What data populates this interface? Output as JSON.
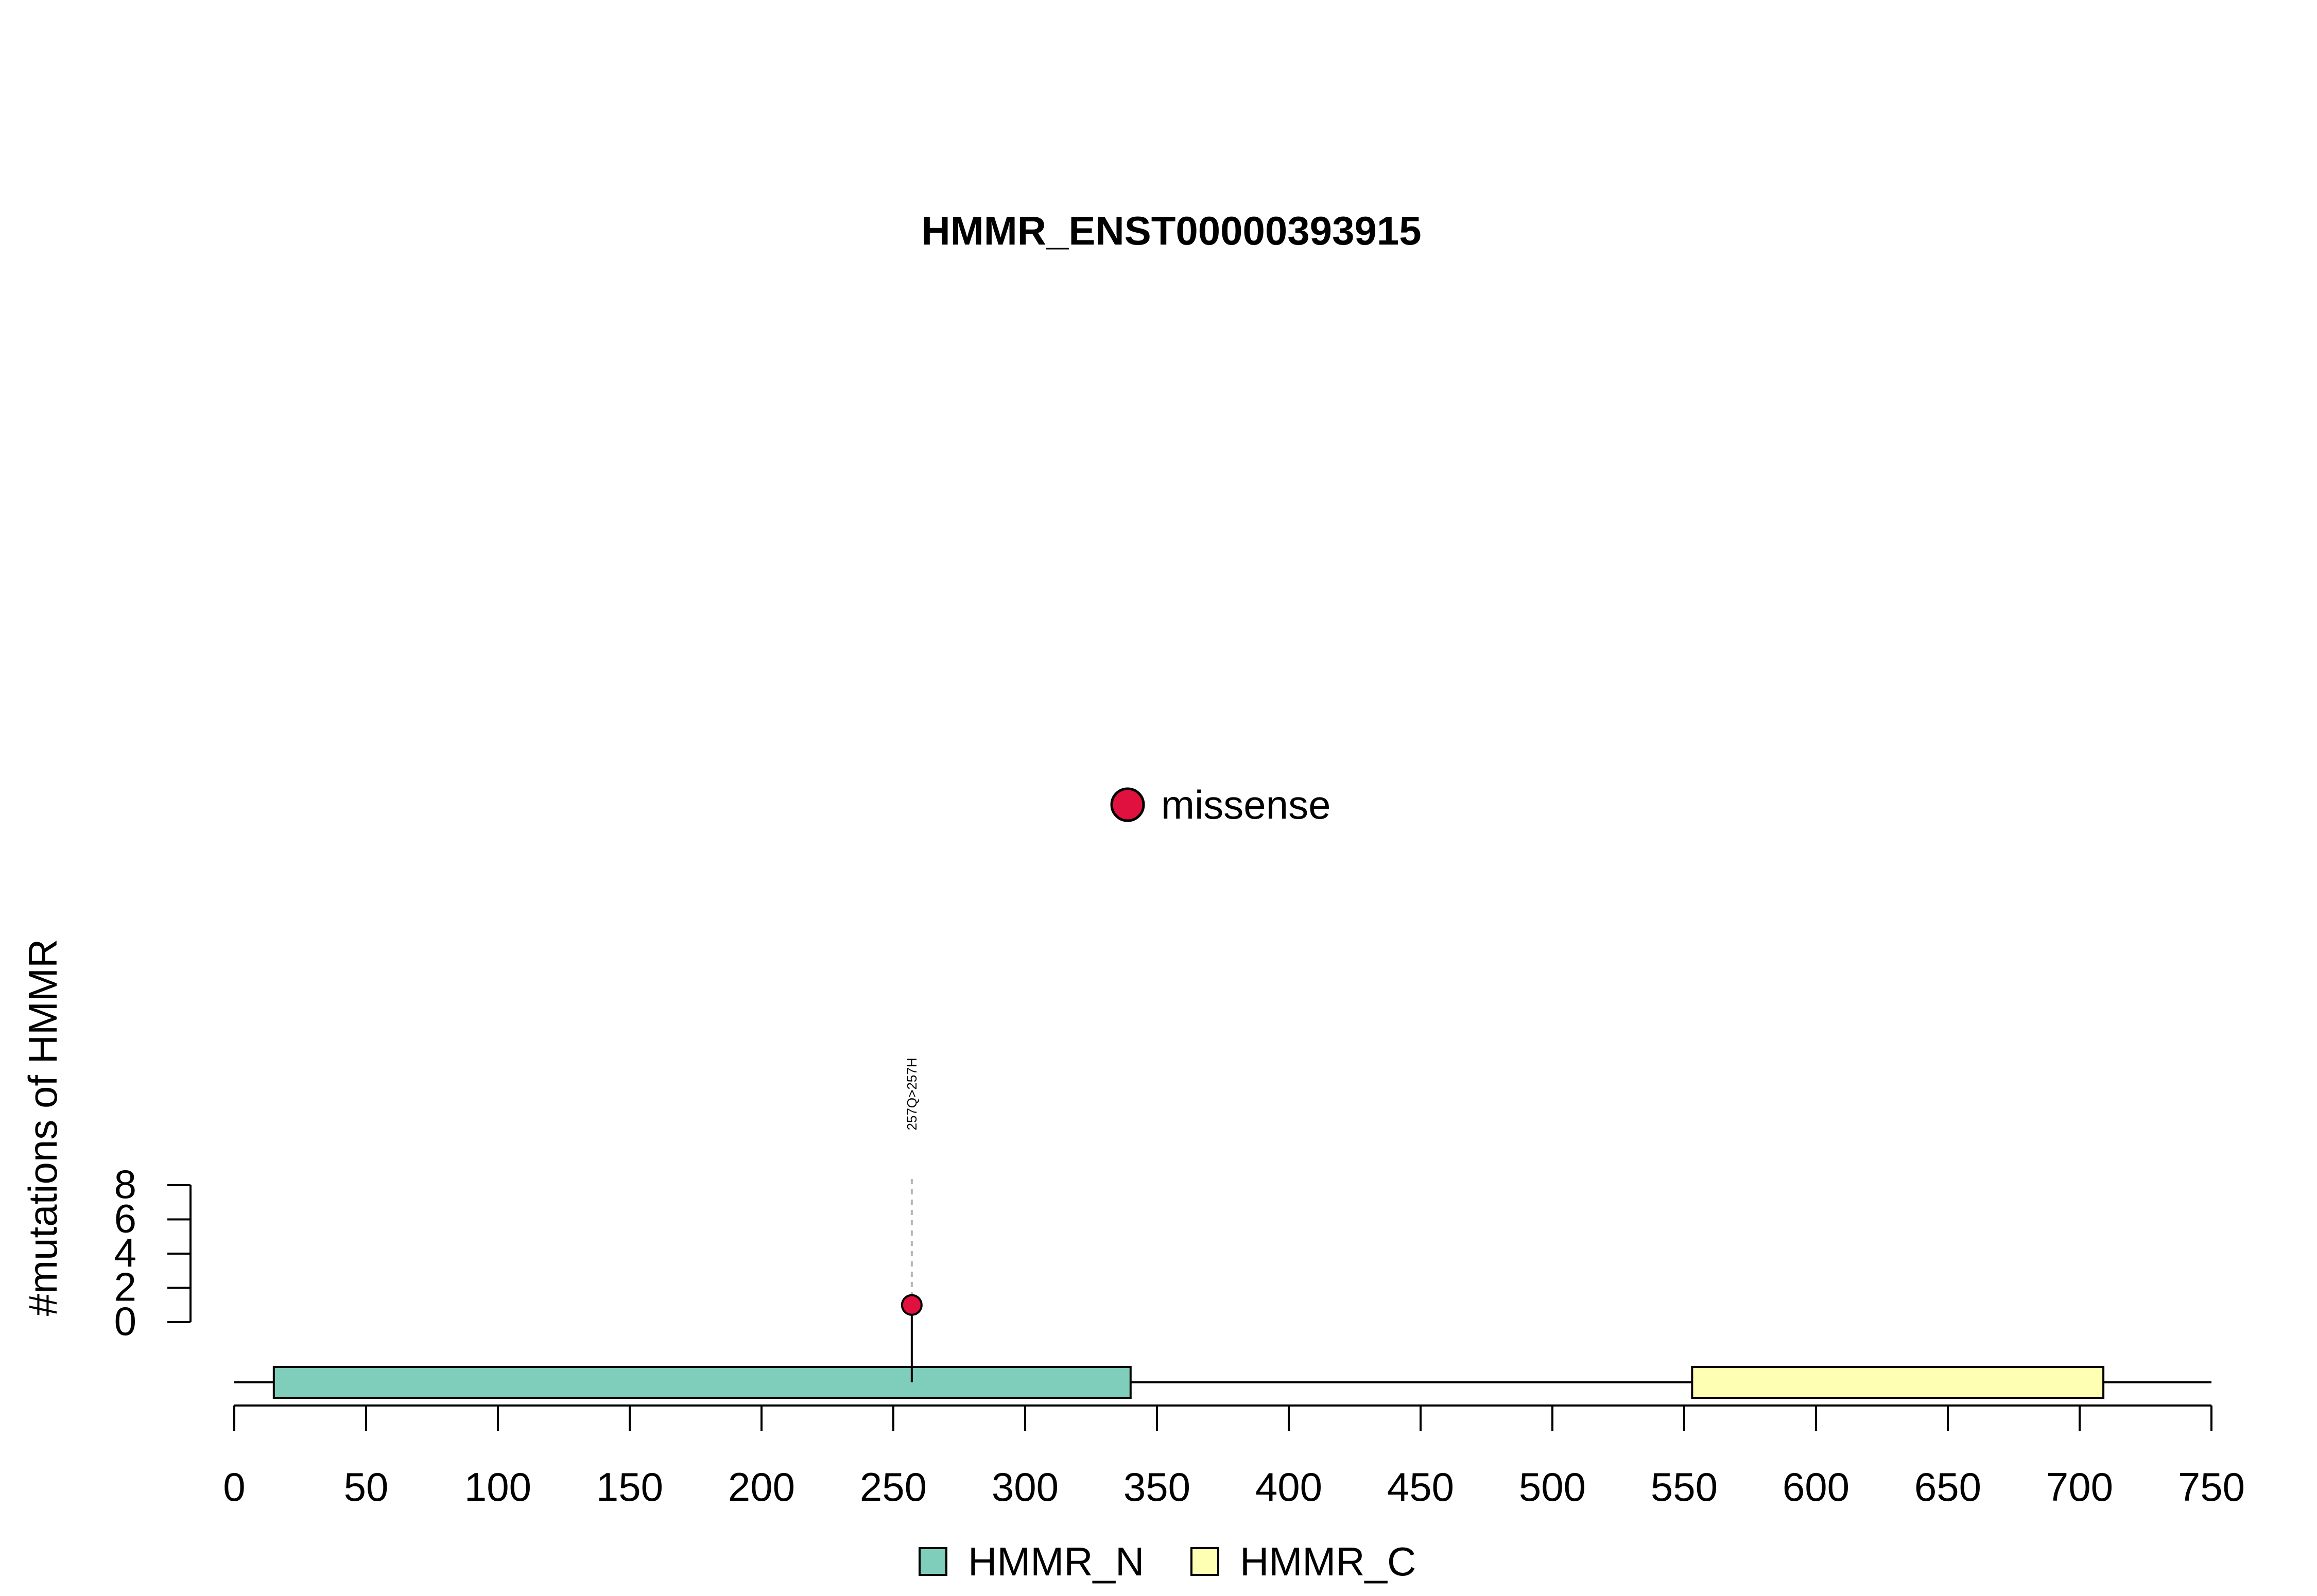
{
  "chart_data": {
    "type": "lollipop",
    "title": "HMMR_ENST00000393915",
    "ylabel": "#mutations of HMMR",
    "xlim": [
      0,
      750
    ],
    "x_ticks": [
      0,
      50,
      100,
      150,
      200,
      250,
      300,
      350,
      400,
      450,
      500,
      550,
      600,
      650,
      700,
      750
    ],
    "x_tick_labels": [
      "0",
      "50",
      "100",
      "150",
      "200",
      "250",
      "300",
      "350",
      "400",
      "450",
      "500",
      "550",
      "600",
      "650",
      "700",
      "750"
    ],
    "ylim": [
      0,
      8
    ],
    "y_ticks": [
      0,
      2,
      4,
      6,
      8
    ],
    "y_tick_labels": [
      "0",
      "2",
      "4",
      "6",
      "8"
    ],
    "protein_length": 750,
    "domains": [
      {
        "name": "HMMR_N",
        "start": 15,
        "end": 340,
        "color": "#7fcdbb"
      },
      {
        "name": "HMMR_C",
        "start": 553,
        "end": 709,
        "color": "#ffffb3"
      }
    ],
    "mutations": [
      {
        "position": 257,
        "count": 1,
        "type": "missense",
        "label": "257Q>257H",
        "color": "#e0103f"
      }
    ],
    "mutation_legend": [
      {
        "label": "missense",
        "color": "#e0103f"
      }
    ],
    "domain_legend": [
      {
        "label": "HMMR_N",
        "color": "#7fcdbb"
      },
      {
        "label": "HMMR_C",
        "color": "#ffffb3"
      }
    ],
    "grid": false
  }
}
